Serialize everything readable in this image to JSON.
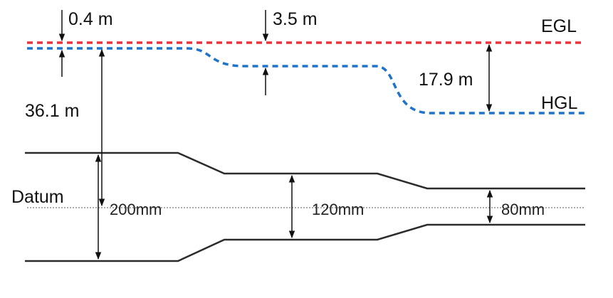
{
  "labels": {
    "egl": "EGL",
    "hgl": "HGL",
    "datum": "Datum"
  },
  "dimensions": {
    "head_loss_velocity_1": "0.4 m",
    "head_loss_2": "3.5 m",
    "head_drop_3": "17.9 m",
    "pressure_head_1": "36.1 m"
  },
  "diameters": {
    "d1": "200mm",
    "d2": "120mm",
    "d3": "80mm"
  },
  "colors": {
    "egl": "#e8323c",
    "hgl": "#1f73c8",
    "pipe": "#2b2b2b",
    "arrow": "#111111",
    "datum": "#555555"
  }
}
